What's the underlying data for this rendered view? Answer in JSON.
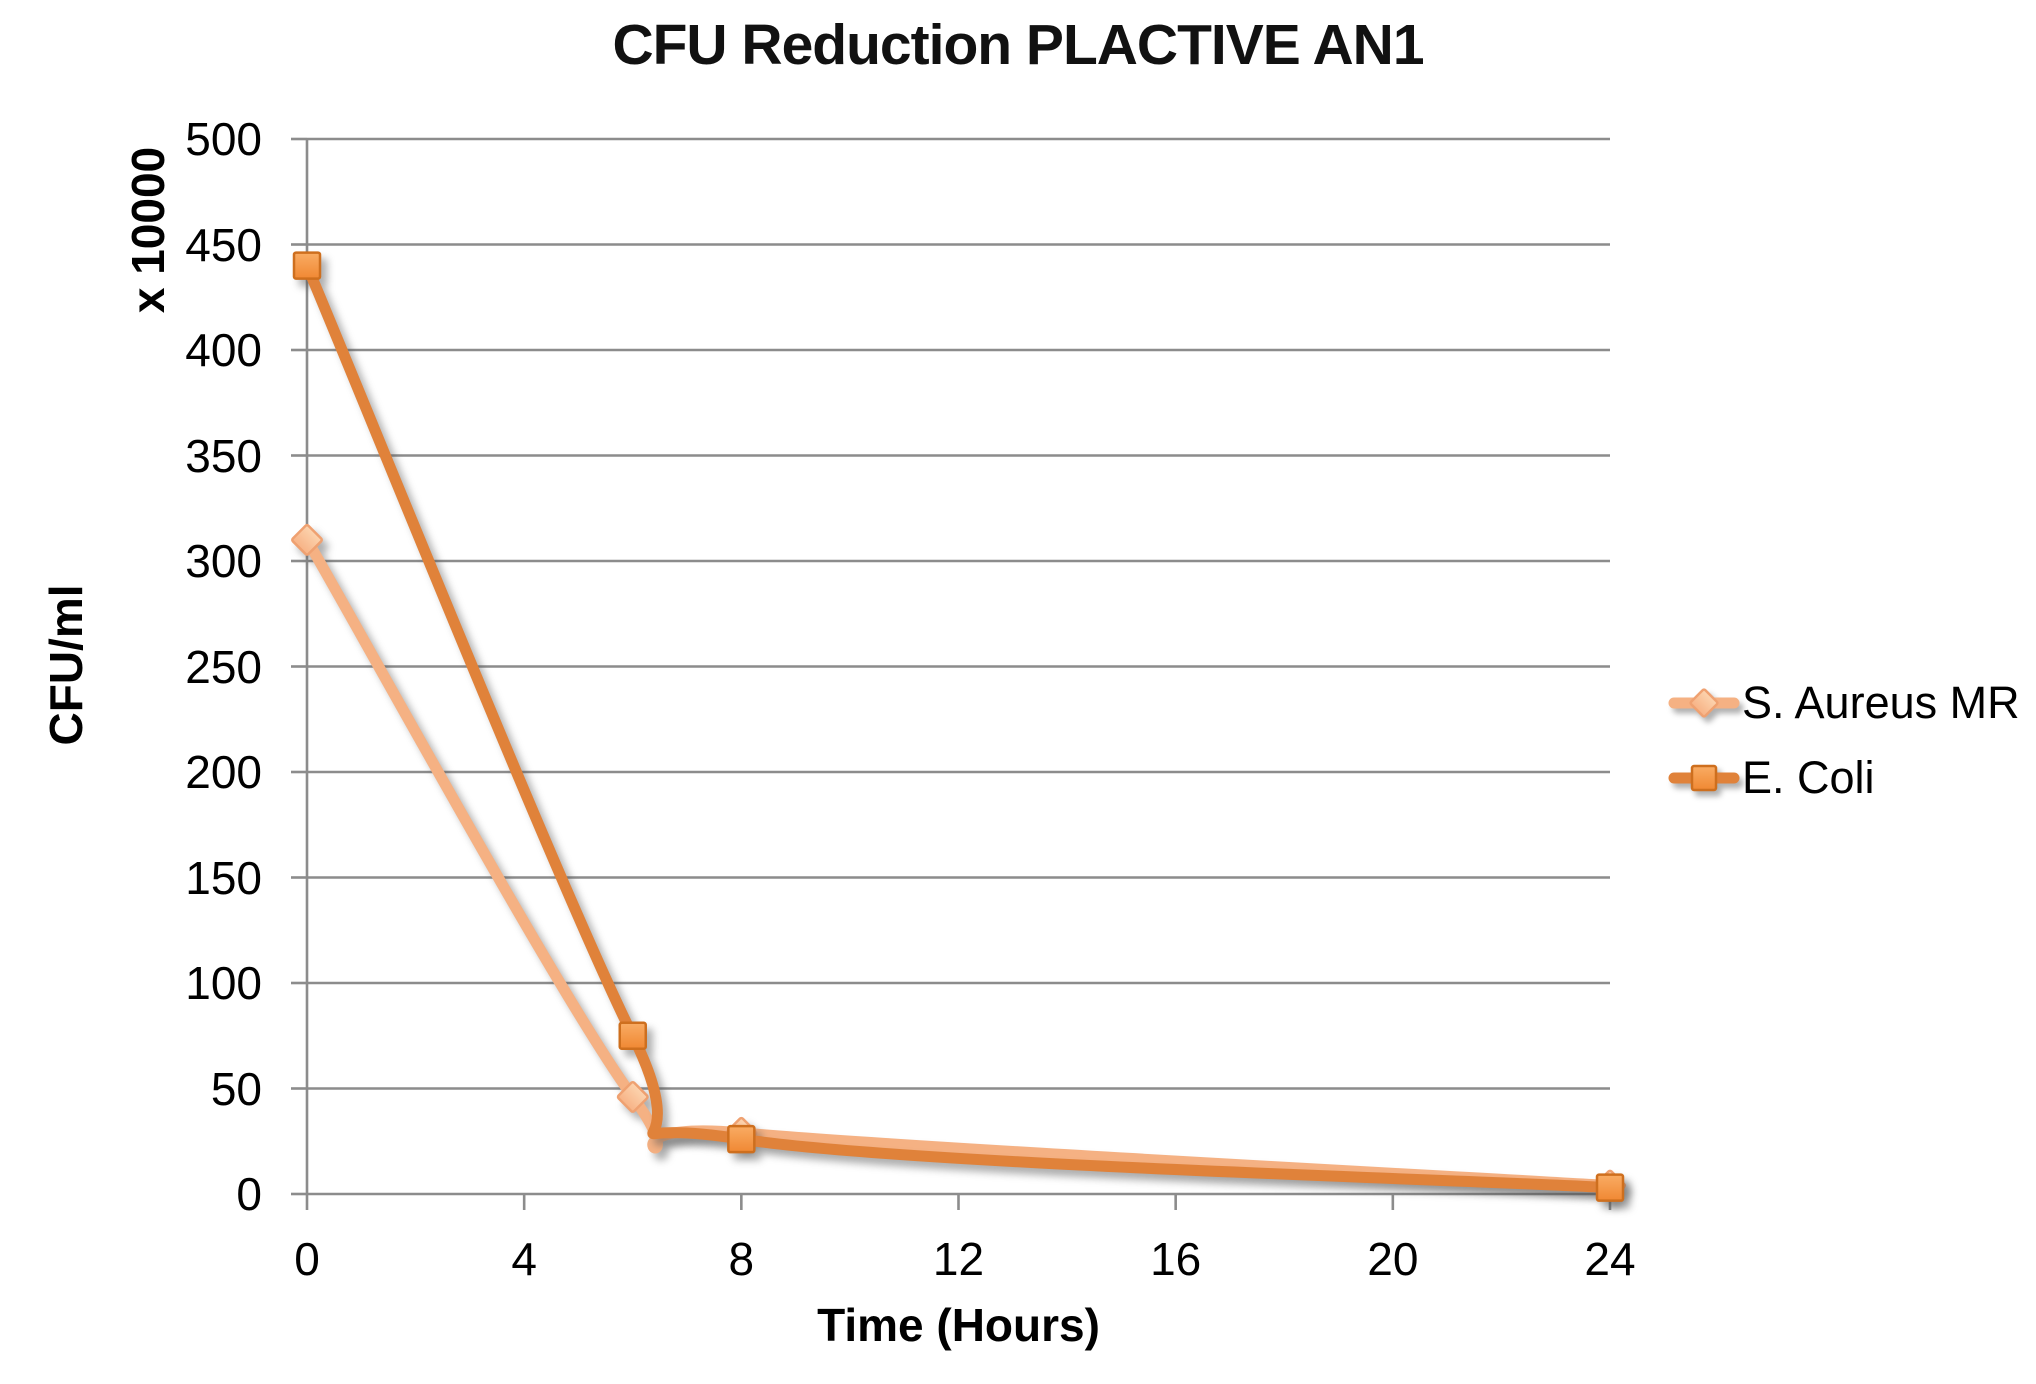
{
  "chart_data": {
    "type": "line",
    "title": "CFU Reduction PLACTIVE AN1",
    "xlabel": "Time (Hours)",
    "ylabel": "CFU/ml",
    "y_multiplier_label": "x 10000",
    "x": [
      0,
      6,
      8,
      24
    ],
    "x_ticks": [
      0,
      4,
      8,
      12,
      16,
      20,
      24
    ],
    "xlim": [
      0,
      24
    ],
    "y_ticks": [
      0,
      50,
      100,
      150,
      200,
      250,
      300,
      350,
      400,
      450,
      500
    ],
    "ylim": [
      0,
      500
    ],
    "grid": "horizontal-only",
    "smooth_lines": true,
    "legend_position": "right",
    "series": [
      {
        "name": "S. Aureus MR",
        "marker": "diamond",
        "values": [
          310,
          46,
          29,
          4
        ],
        "line_color": "#F5B183",
        "marker_fill_top": "#FCD4AF",
        "marker_fill_bottom": "#F7B285",
        "marker_border": "#EFA171"
      },
      {
        "name": "E. Coli",
        "marker": "square",
        "values": [
          440,
          75,
          26,
          3
        ],
        "line_color": "#E0823A",
        "marker_fill_top": "#F9AC64",
        "marker_fill_bottom": "#F08833",
        "marker_border": "#CE6F1E"
      }
    ],
    "colors": {
      "gridline": "#8C8C8C",
      "axis": "#8C8C8C",
      "text": "#000000"
    }
  }
}
